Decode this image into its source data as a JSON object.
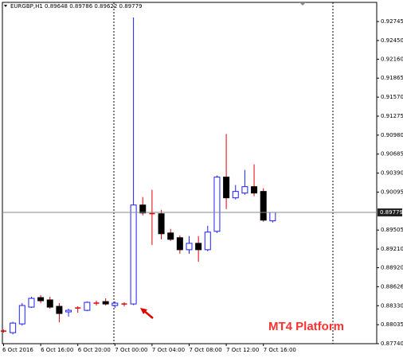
{
  "chart_data": {
    "type": "candlestick",
    "title": "EURGBP,H1 0.89648 0.89786 0.89622 0.89779",
    "annotation": "MT4 Platform",
    "categories": [
      "6 Oct 2016",
      null,
      null,
      null,
      "6 Oct 16:00",
      null,
      null,
      null,
      "6 Oct 20:00",
      null,
      null,
      null,
      "7 Oct 00:00",
      null,
      null,
      null,
      "7 Oct 04:00",
      null,
      null,
      null,
      "7 Oct 08:00",
      null,
      null,
      null,
      "7 Oct 12:00",
      null,
      null,
      null,
      "7 Oct 16:00",
      null
    ],
    "open": [
      0.87936,
      0.87911,
      0.88047,
      0.88308,
      0.88456,
      0.8842,
      0.8832,
      0.88234,
      0.88295,
      0.88258,
      0.8837,
      0.88394,
      0.88333,
      0.88357,
      0.88357,
      0.89894,
      0.8976,
      0.89758,
      0.8946,
      0.89386,
      0.892,
      0.89299,
      0.892,
      0.89485,
      0.90328,
      0.90006,
      0.9008,
      0.90179,
      0.90105,
      0.89648
    ],
    "high": [
      0.8796,
      0.8808,
      0.8837,
      0.88469,
      0.88494,
      0.88469,
      0.8837,
      0.88283,
      0.8832,
      0.88394,
      0.88407,
      0.88444,
      0.88394,
      0.88382,
      0.92807,
      0.90018,
      0.9013,
      0.8982,
      0.89523,
      0.89423,
      0.89411,
      0.89411,
      0.89572,
      0.90353,
      0.90997,
      0.90204,
      0.9044,
      0.90526,
      0.90154,
      0.89786
    ],
    "low": [
      0.87911,
      0.87886,
      0.88022,
      0.88296,
      0.8837,
      0.88283,
      0.88072,
      0.88159,
      0.88221,
      0.88246,
      0.88333,
      0.88333,
      0.88296,
      0.8832,
      0.8834,
      0.89733,
      0.89274,
      0.89361,
      0.89337,
      0.89138,
      0.89138,
      0.89014,
      0.89175,
      0.8946,
      0.89832,
      0.89981,
      0.90055,
      0.90031,
      0.89634,
      0.89622
    ],
    "close": [
      0.87936,
      0.8806,
      0.88333,
      0.88444,
      0.88407,
      0.88308,
      0.88209,
      0.88258,
      0.88295,
      0.88382,
      0.8837,
      0.88357,
      0.8837,
      0.88357,
      0.89894,
      0.8977,
      0.8976,
      0.89448,
      0.89361,
      0.892,
      0.89299,
      0.892,
      0.89473,
      0.90328,
      0.90006,
      0.90105,
      0.90179,
      0.9008,
      0.89659,
      0.89779
    ],
    "up_color": "#1f1fff",
    "down_color": "#000000",
    "down_wick_color": "#e00000",
    "current_price": 0.89779,
    "ylim": [
      0.8774,
      0.93042
    ],
    "yticks": [
      0.92745,
      {
        "value": 0.9245,
        "label": "0.92450"
      },
      {
        "value": 0.9216,
        "label": "0.92160"
      },
      0.91865,
      {
        "value": 0.9157,
        "label": "0.91570"
      },
      0.91275,
      {
        "value": 0.9098,
        "label": "0.90980"
      },
      0.90685,
      {
        "value": 0.9039,
        "label": "0.90390"
      },
      0.90095,
      0.89505,
      {
        "value": 0.8921,
        "label": "0.89210"
      },
      {
        "value": 0.8892,
        "label": "0.88920"
      },
      0.88626,
      {
        "value": 0.8833,
        "label": "0.88330"
      },
      0.88035,
      {
        "value": 0.8774,
        "label": "0.87740"
      }
    ]
  }
}
